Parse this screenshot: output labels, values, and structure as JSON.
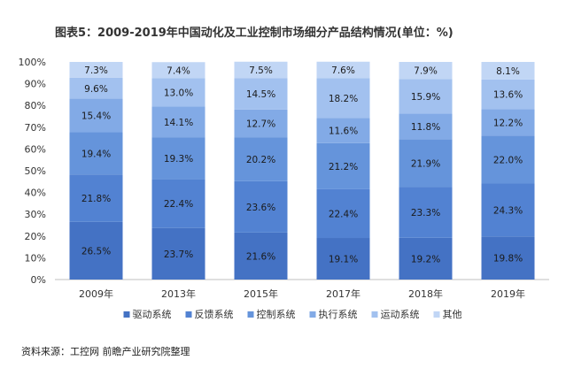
{
  "chart_data": {
    "type": "bar",
    "stacked": true,
    "title": "图表5：2009-2019年中国动化及工业控制市场细分产品结构情况(单位：%)",
    "categories": [
      "2009年",
      "2013年",
      "2015年",
      "2017年",
      "2018年",
      "2019年"
    ],
    "series": [
      {
        "name": "驱动系统",
        "values": [
          26.5,
          23.7,
          21.6,
          19.1,
          19.2,
          19.8
        ],
        "labels": [
          "26.5%",
          "23.7%",
          "21.6%",
          "19.1%",
          "19.2%",
          "19.8%"
        ],
        "color": "#4472c4"
      },
      {
        "name": "反馈系统",
        "values": [
          21.8,
          22.4,
          23.6,
          22.4,
          23.3,
          24.3
        ],
        "labels": [
          "21.8%",
          "22.4%",
          "23.6%",
          "22.4%",
          "23.3%",
          "24.3%"
        ],
        "color": "#5282d2"
      },
      {
        "name": "控制系统",
        "values": [
          19.4,
          19.3,
          20.2,
          21.2,
          21.9,
          22.0
        ],
        "labels": [
          "19.4%",
          "19.3%",
          "20.2%",
          "21.2%",
          "21.9%",
          "22.0%"
        ],
        "color": "#6594db"
      },
      {
        "name": "执行系统",
        "values": [
          15.4,
          14.1,
          12.7,
          11.6,
          11.8,
          12.2
        ],
        "labels": [
          "15.4%",
          "14.1%",
          "12.7%",
          "11.6%",
          "11.8%",
          "12.2%"
        ],
        "color": "#82aae6"
      },
      {
        "name": "运动系统",
        "values": [
          9.6,
          13.0,
          14.5,
          18.2,
          15.9,
          13.6
        ],
        "labels": [
          "9.6%",
          "13.0%",
          "14.5%",
          "18.2%",
          "15.9%",
          "13.6%"
        ],
        "color": "#a2c1ef"
      },
      {
        "name": "其他",
        "values": [
          7.3,
          7.4,
          7.5,
          7.6,
          7.9,
          8.1
        ],
        "labels": [
          "7.3%",
          "7.4%",
          "7.5%",
          "7.6%",
          "7.9%",
          "8.1%"
        ],
        "color": "#c1d6f5"
      }
    ],
    "yticks": [
      "0%",
      "10%",
      "20%",
      "30%",
      "40%",
      "50%",
      "60%",
      "70%",
      "80%",
      "90%",
      "100%"
    ],
    "ylim": [
      0,
      100
    ],
    "xlabel": "",
    "ylabel": "",
    "grid": false,
    "legend": "bottom"
  },
  "source_note": "资料来源：工控网 前瞻产业研究院整理"
}
